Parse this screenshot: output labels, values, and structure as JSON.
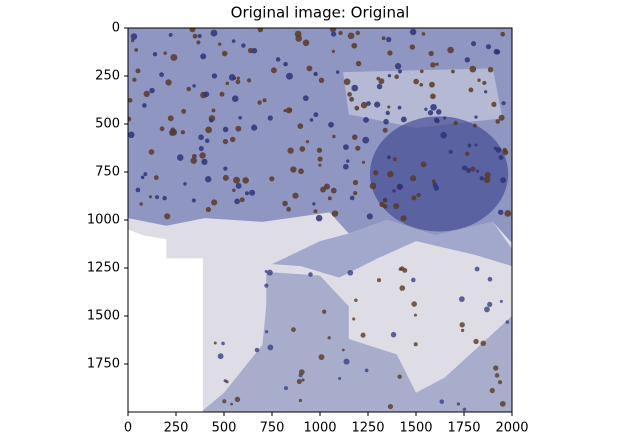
{
  "chart_data": {
    "type": "image",
    "title": "Original image: Original",
    "xlim": [
      0,
      2000
    ],
    "ylim": [
      2000,
      0
    ],
    "xticks": [
      0,
      250,
      500,
      750,
      1000,
      1250,
      1500,
      1750,
      2000
    ],
    "yticks": [
      0,
      250,
      500,
      750,
      1000,
      1250,
      1500,
      1750
    ]
  }
}
